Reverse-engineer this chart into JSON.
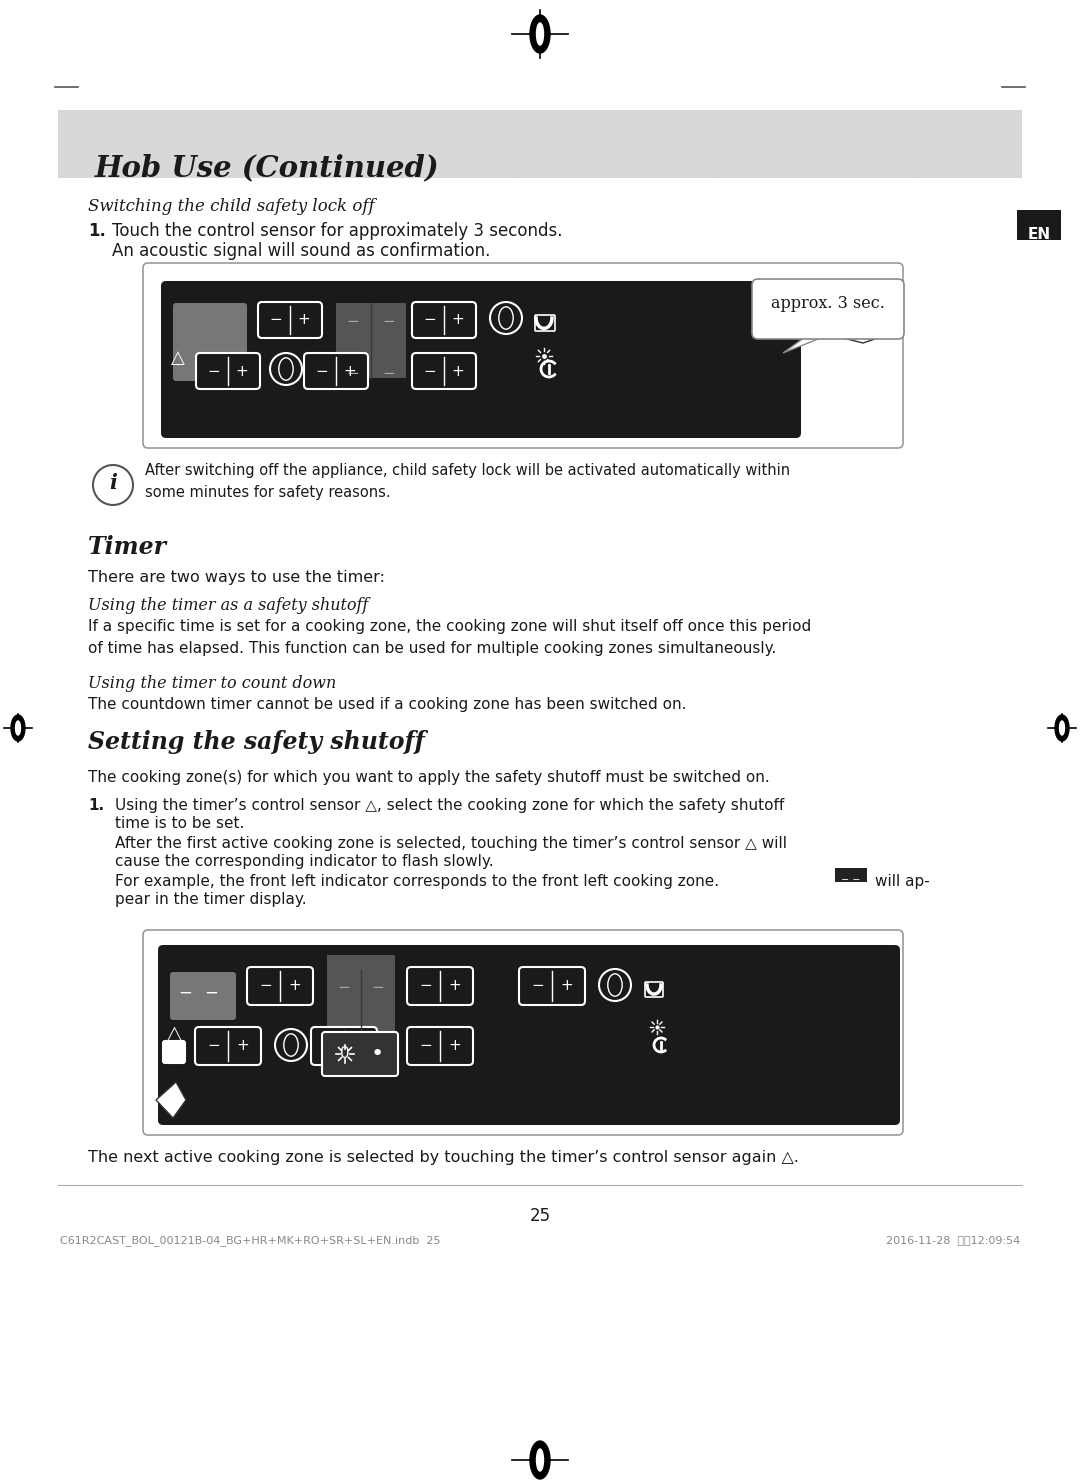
{
  "page_bg": "#ffffff",
  "header_bg": "#d8d8d8",
  "header_title": "Hob Use (Continued)",
  "header_title_color": "#1a1a1a",
  "en_badge_bg": "#1a1a1a",
  "en_badge_text": "EN",
  "en_badge_color": "#ffffff",
  "section1_italic": "Switching the child safety lock off",
  "approx_label": "approx. 3 sec.",
  "info_text": "After switching off the appliance, child safety lock will be activated automatically within\nsome minutes for safety reasons.",
  "timer_intro": "There are two ways to use the timer:",
  "sub1_italic": "Using the timer as a safety shutoff",
  "sub1_text": "If a specific time is set for a cooking zone, the cooking zone will shut itself off once this period\nof time has elapsed. This function can be used for multiple cooking zones simultaneously.",
  "sub2_italic": "Using the timer to count down",
  "sub2_text": "The countdown timer cannot be used if a cooking zone has been switched on.",
  "section3_bold_italic": "Setting the safety shutoff",
  "safety_intro": "The cooking zone(s) for which you want to apply the safety shutoff must be switched on.",
  "bottom_text": "The next active cooking zone is selected by touching the timer’s control sensor again △.",
  "page_number": "25",
  "footer_left": "C61R2CAST_BOL_00121B-04_BG+HR+MK+RO+SR+SL+EN.indb  25",
  "footer_right": "2016-11-28  오후12:09:54",
  "panel_bg": "#1a1a1a",
  "panel_gray": "#555555",
  "panel_display_gray": "#777777"
}
